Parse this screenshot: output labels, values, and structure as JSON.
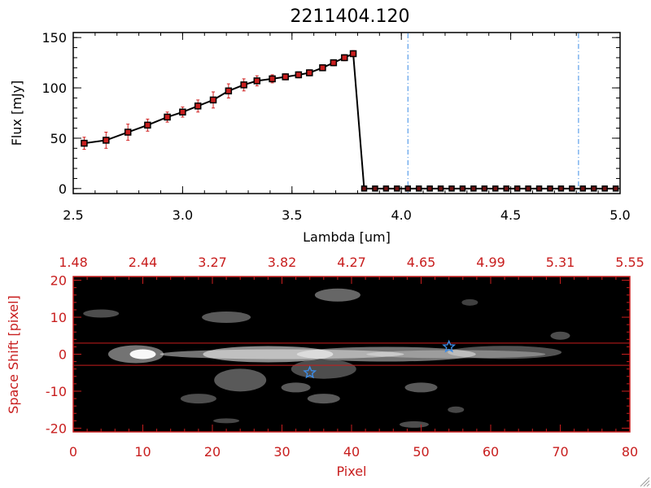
{
  "chart_data": [
    {
      "type": "line",
      "title": "2211404.120",
      "xlabel": "Lambda [um]",
      "ylabel": "Flux [mJy]",
      "xlim": [
        2.5,
        5.0
      ],
      "ylim": [
        -5,
        155
      ],
      "x_ticks": [
        "2.5",
        "3.0",
        "3.5",
        "4.0",
        "4.5",
        "5.0"
      ],
      "y_ticks": [
        "0",
        "50",
        "100",
        "150"
      ],
      "line_color": "#000000",
      "marker_color": "#c81e1e",
      "errorbar_color": "#d22020",
      "series": [
        {
          "x": [
            2.55,
            2.65,
            2.75,
            2.84,
            2.93,
            3.0,
            3.07,
            3.14,
            3.21,
            3.28,
            3.34,
            3.41,
            3.47,
            3.53,
            3.58,
            3.64,
            3.69,
            3.74,
            3.78
          ],
          "y": [
            45,
            48,
            56,
            63,
            71,
            76,
            82,
            88,
            97,
            103,
            107,
            109,
            111,
            113,
            115,
            120,
            125,
            130,
            134
          ],
          "err": [
            6,
            8,
            8,
            6,
            5,
            5,
            6,
            8,
            7,
            6,
            5,
            4,
            3,
            3,
            3,
            3,
            3,
            3,
            3
          ]
        }
      ],
      "zero_series_x": [
        3.83,
        3.88,
        3.93,
        3.98,
        4.03,
        4.08,
        4.13,
        4.18,
        4.23,
        4.28,
        4.33,
        4.38,
        4.43,
        4.48,
        4.53,
        4.58,
        4.63,
        4.68,
        4.73,
        4.78,
        4.83,
        4.88,
        4.93,
        4.98
      ],
      "vertical_lines": [
        4.03,
        4.81
      ],
      "vertical_line_color": "#3c8ce6"
    },
    {
      "type": "heatmap",
      "xlabel": "Pixel",
      "ylabel": "Space Shift [pixel]",
      "xlim": [
        0,
        80
      ],
      "ylim": [
        -21,
        21
      ],
      "x_ticks": [
        "0",
        "10",
        "20",
        "30",
        "40",
        "50",
        "60",
        "70",
        "80"
      ],
      "y_ticks": [
        "-20",
        "-10",
        "0",
        "10",
        "20"
      ],
      "top_ticks": [
        "1.48",
        "2.44",
        "3.27",
        "3.82",
        "4.27",
        "4.65",
        "4.99",
        "5.31",
        "5.55"
      ],
      "horizontal_lines": [
        3,
        -3
      ],
      "star_markers": [
        {
          "x": 54,
          "y": 2
        },
        {
          "x": 34,
          "y": -5
        }
      ],
      "axis_color": "#c81e1e",
      "star_color": "#3c8ce6"
    }
  ]
}
